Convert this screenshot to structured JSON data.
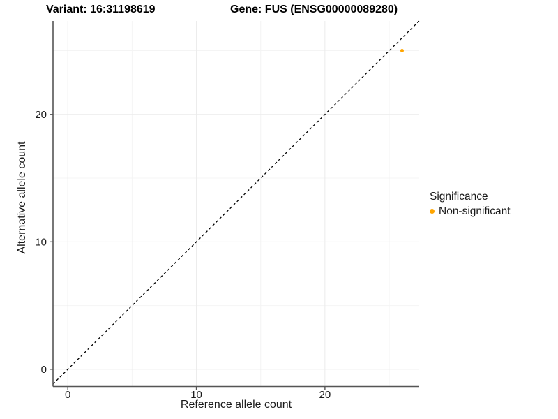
{
  "chart_data": {
    "type": "scatter",
    "title_left": "Variant: 16:31198619",
    "title_right": "Gene: FUS (ENSG00000089280)",
    "xlabel": "Reference allele count",
    "ylabel": "Alternative allele count",
    "x_ticks": [
      0,
      10,
      20
    ],
    "y_ticks": [
      0,
      10,
      20
    ],
    "x_minor_ticks": [
      5,
      15,
      25
    ],
    "y_minor_ticks": [
      5,
      15,
      25
    ],
    "xlim": [
      -1.15,
      27.33
    ],
    "ylim": [
      -1.35,
      27.33
    ],
    "grid": "major and minor, very light gray, on white background",
    "identity_line": {
      "equation": "y = x",
      "style": "dashed",
      "color": "#000000"
    },
    "series": [
      {
        "name": "Non-significant",
        "color": "#FFA500",
        "points": [
          {
            "x": 26,
            "y": 25
          }
        ]
      }
    ],
    "legend": {
      "position": "right",
      "title": "Significance",
      "items": [
        {
          "label": "Non-significant",
          "color": "#FFA500"
        }
      ]
    },
    "colors": {
      "background": "#FFFFFF",
      "axis_line": "#555555",
      "tick_text": "#1a1a1a",
      "grid_major": "#EBEBEB",
      "grid_minor": "#F4F4F4",
      "point": "#FFA500"
    }
  }
}
